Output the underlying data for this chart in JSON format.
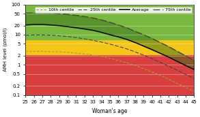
{
  "ages": [
    25,
    26,
    27,
    28,
    29,
    30,
    31,
    32,
    33,
    34,
    35,
    36,
    37,
    38,
    39,
    40,
    41,
    42,
    43,
    44,
    45
  ],
  "centile_75": [
    52,
    53,
    53,
    52,
    50,
    47,
    44,
    40,
    36,
    31,
    26,
    21,
    17,
    13,
    10,
    7.5,
    5.5,
    4.0,
    2.8,
    2.0,
    1.4
  ],
  "average": [
    21,
    22,
    22,
    21,
    20,
    18.5,
    17,
    15.5,
    14,
    12,
    10,
    8.5,
    7.0,
    5.5,
    4.2,
    3.2,
    2.4,
    1.8,
    1.3,
    0.95,
    0.7
  ],
  "centile_25": [
    9.5,
    9.8,
    9.8,
    9.6,
    9.2,
    8.7,
    8.0,
    7.3,
    6.5,
    5.7,
    4.9,
    4.1,
    3.4,
    2.7,
    2.1,
    1.6,
    1.2,
    0.9,
    0.66,
    0.48,
    0.35
  ],
  "centile_10": [
    2.8,
    2.8,
    2.8,
    2.75,
    2.7,
    2.6,
    2.45,
    2.3,
    2.1,
    1.9,
    1.65,
    1.4,
    1.18,
    0.95,
    0.75,
    0.58,
    0.44,
    0.33,
    0.24,
    0.18,
    0.13
  ],
  "bg_green_above": 7.0,
  "bg_yellow_low": 2.2,
  "bg_yellow_high": 7.0,
  "color_green": "#7ab940",
  "color_yellow": "#f5c518",
  "color_red": "#d93f3f",
  "color_75": "#444444",
  "color_avg": "#111111",
  "color_25": "#444444",
  "color_10": "#a0a030",
  "fill_color": "#3a6e1a",
  "xlabel": "Woman's age",
  "ylabel": "AMH level (pmol/l)",
  "ylim_low": 0.1,
  "ylim_high": 100,
  "legend_10": "10th centile",
  "legend_25": "25th centile",
  "legend_avg": "Average",
  "legend_75": "75th centile",
  "ytick_vals": [
    0.1,
    0.2,
    0.5,
    1,
    2,
    5,
    10,
    20,
    50,
    100
  ],
  "ytick_labels": [
    "0.1",
    "0.2",
    "0.5",
    "1",
    "2",
    "5",
    "10",
    "20",
    "50",
    "100"
  ],
  "axis_fontsize": 5,
  "legend_fontsize": 4.5
}
